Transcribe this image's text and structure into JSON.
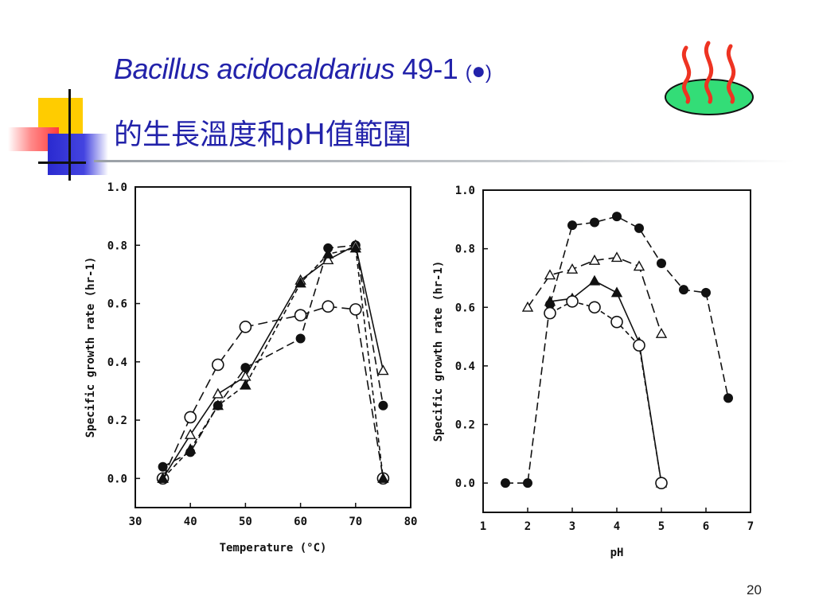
{
  "slide": {
    "title_italic": "Bacillus acidocaldarius",
    "title_strain": " 49-1 ",
    "title_paren_open": "(",
    "title_dot": "●",
    "title_paren_close": ")",
    "title_line2": "的生長溫度和pH值範圍",
    "page_number": "20",
    "decor_icon": "steaming-dish-icon",
    "colors": {
      "title": "#2222aa",
      "yellow": "#ffcc00",
      "red": "#ff3b3b",
      "blue": "#2a2ad0",
      "icon_green": "#33dd77",
      "icon_red": "#ee3322"
    }
  },
  "chart_data": [
    {
      "type": "line",
      "xlabel": "Temperature (°C)",
      "ylabel": "Specific growth rate (hr-1)",
      "xlim": [
        30,
        80
      ],
      "ylim": [
        -0.1,
        1.0
      ],
      "xticks": [
        "30",
        "40",
        "50",
        "60",
        "70",
        "80"
      ],
      "yticks": [
        "0.0",
        "0.2",
        "0.4",
        "0.6",
        "0.8",
        "1.0"
      ],
      "series": [
        {
          "marker": "filled-circle",
          "x": [
            35,
            40,
            45,
            50,
            60,
            65,
            70,
            75
          ],
          "values": [
            0.04,
            0.09,
            0.25,
            0.38,
            0.48,
            0.79,
            0.8,
            0.25
          ]
        },
        {
          "marker": "open-circle",
          "x": [
            35,
            40,
            45,
            50,
            60,
            65,
            70,
            75
          ],
          "values": [
            0.0,
            0.21,
            0.39,
            0.52,
            0.56,
            0.59,
            0.58,
            0.0
          ]
        },
        {
          "marker": "open-triangle",
          "x": [
            35,
            40,
            45,
            50,
            60,
            65,
            70,
            75
          ],
          "values": [
            0.0,
            0.15,
            0.29,
            0.35,
            0.68,
            0.75,
            0.8,
            0.37
          ]
        },
        {
          "marker": "filled-triangle",
          "x": [
            35,
            40,
            45,
            50,
            60,
            65,
            70,
            75
          ],
          "values": [
            0.0,
            0.1,
            0.25,
            0.32,
            0.67,
            0.77,
            0.79,
            0.0
          ]
        }
      ]
    },
    {
      "type": "line",
      "xlabel": "pH",
      "ylabel": "Specific growth rate (hr-1)",
      "xlim": [
        1,
        7
      ],
      "ylim": [
        -0.1,
        1.0
      ],
      "xticks": [
        "1",
        "2",
        "3",
        "4",
        "5",
        "6",
        "7"
      ],
      "yticks": [
        "0.0",
        "0.2",
        "0.4",
        "0.6",
        "0.8",
        "1.0"
      ],
      "series": [
        {
          "marker": "filled-circle",
          "x": [
            1.5,
            2.0,
            2.5,
            3.0,
            3.5,
            4.0,
            4.5,
            5.0,
            5.5,
            6.0,
            6.5
          ],
          "values": [
            0.0,
            0.0,
            0.61,
            0.88,
            0.89,
            0.91,
            0.87,
            0.75,
            0.66,
            0.65,
            0.29
          ]
        },
        {
          "marker": "open-triangle",
          "x": [
            2.0,
            2.5,
            3.0,
            3.5,
            4.0,
            4.5,
            5.0
          ],
          "values": [
            0.6,
            0.71,
            0.73,
            0.76,
            0.77,
            0.74,
            0.51
          ]
        },
        {
          "marker": "filled-triangle",
          "x": [
            2.5,
            3.0,
            3.5,
            4.0,
            4.5,
            5.0
          ],
          "values": [
            0.62,
            0.63,
            0.69,
            0.65,
            0.48,
            0.0
          ]
        },
        {
          "marker": "open-circle",
          "x": [
            2.5,
            3.0,
            3.5,
            4.0,
            4.5,
            5.0
          ],
          "values": [
            0.58,
            0.62,
            0.6,
            0.55,
            0.47,
            0.0
          ]
        }
      ]
    }
  ]
}
